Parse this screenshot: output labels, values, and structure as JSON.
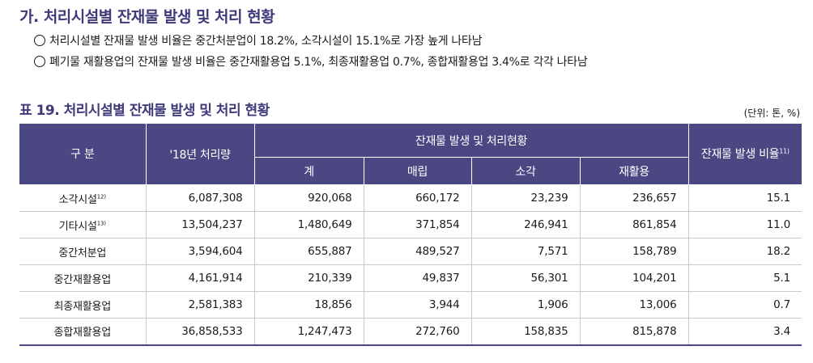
{
  "section": {
    "title": "가. 처리시설별 잔재물 발생 및 처리 현황",
    "bullets": [
      "처리시설별 잔재물 발생 비율은 중간처분업이 18.2%, 소각시설이 15.1%로 가장 높게 나타남",
      "폐기물 재활용업의 잔재물 발생 비율은 중간재활용업 5.1%, 최종재활용업 0.7%, 종합재활용업 3.4%로 각각 나타남"
    ]
  },
  "table": {
    "title": "표 19. 처리시설별 잔재물 발생 및 처리 현황",
    "unit": "(단위: 톤, %)",
    "header": {
      "category": "구 분",
      "amount": "'18년 처리량",
      "group": "잔재물 발생 및 처리현황",
      "sub": [
        "계",
        "매립",
        "소각",
        "재활용"
      ],
      "ratio": "잔재물 발생 비율",
      "ratio_note": "11)"
    },
    "rows": [
      {
        "label": "소각시설",
        "note": "12)",
        "amount": "6,087,308",
        "total": "920,068",
        "landfill": "660,172",
        "incineration": "23,239",
        "recycling": "236,657",
        "ratio": "15.1"
      },
      {
        "label": "기타시설",
        "note": "13)",
        "amount": "13,504,237",
        "total": "1,480,649",
        "landfill": "371,854",
        "incineration": "246,941",
        "recycling": "861,854",
        "ratio": "11.0"
      },
      {
        "label": "중간처분업",
        "note": "",
        "amount": "3,594,604",
        "total": "655,887",
        "landfill": "489,527",
        "incineration": "7,571",
        "recycling": "158,789",
        "ratio": "18.2"
      },
      {
        "label": "중간재활용업",
        "note": "",
        "amount": "4,161,914",
        "total": "210,339",
        "landfill": "49,837",
        "incineration": "56,301",
        "recycling": "104,201",
        "ratio": "5.1"
      },
      {
        "label": "최종재활용업",
        "note": "",
        "amount": "2,581,383",
        "total": "18,856",
        "landfill": "3,944",
        "incineration": "1,906",
        "recycling": "13,006",
        "ratio": "0.7"
      },
      {
        "label": "종합재활용업",
        "note": "",
        "amount": "36,858,533",
        "total": "1,247,473",
        "landfill": "272,760",
        "incineration": "158,835",
        "recycling": "815,878",
        "ratio": "3.4"
      }
    ]
  },
  "colors": {
    "header_bg": "#4b4783",
    "title": "#3f3a7a"
  }
}
